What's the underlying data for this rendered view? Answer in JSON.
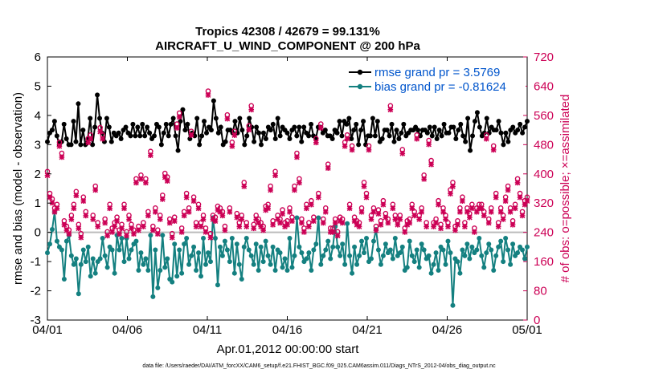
{
  "chart_data": {
    "type": "line",
    "title_line1": "Tropics 42308 / 42679 = 99.131%",
    "title_line2": "AIRCRAFT_U_WIND_COMPONENT @ 200 hPa",
    "xlabel": "Apr.01,2012 00:00:00 start",
    "ylabel_left": "rmse and bias (model - observation)",
    "ylabel_right": "# of obs: o=possible; ×=assimilated",
    "xlim": [
      0,
      30
    ],
    "ylim_left": [
      -3,
      6
    ],
    "ylim_right": [
      0,
      720
    ],
    "x_ticks": [
      0,
      5,
      10,
      15,
      20,
      25,
      30
    ],
    "x_tick_labels": [
      "04/01",
      "04/06",
      "04/11",
      "04/16",
      "04/21",
      "04/26",
      "05/01"
    ],
    "y_left_ticks": [
      -3,
      -2,
      -1,
      0,
      1,
      2,
      3,
      4,
      5,
      6
    ],
    "y_left_tick_labels": [
      "-3",
      "-2",
      "-1",
      "0",
      "1",
      "2",
      "3",
      "4",
      "5",
      "6"
    ],
    "y_right_ticks": [
      0,
      80,
      160,
      240,
      320,
      400,
      480,
      560,
      640,
      720
    ],
    "y_right_tick_labels": [
      "0",
      "80",
      "160",
      "240",
      "320",
      "400",
      "480",
      "560",
      "640",
      "720"
    ],
    "series": [
      {
        "name": "rmse grand pr = 3.5769",
        "color": "#000000",
        "axis": "left",
        "values": [
          3.1,
          3.4,
          3.5,
          3.8,
          3.3,
          3.0,
          3.1,
          3.7,
          3.2,
          3.0,
          3.0,
          3.8,
          3.1,
          4.4,
          3.0,
          3.5,
          3.0,
          3.2,
          3.9,
          3.0,
          3.6,
          4.7,
          3.9,
          3.4,
          3.1,
          3.9,
          3.6,
          3.1,
          3.4,
          3.3,
          3.4,
          3.2,
          3.5,
          3.6,
          3.4,
          3.3,
          3.7,
          3.3,
          3.6,
          3.3,
          3.7,
          3.3,
          3.6,
          3.4,
          3.2,
          3.3,
          3.7,
          3.6,
          3.0,
          3.4,
          3.7,
          3.3,
          3.7,
          3.9,
          3.3,
          2.8,
          3.8,
          4.2,
          3.5,
          3.7,
          3.2,
          3.4,
          3.3,
          3.9,
          3.0,
          3.3,
          3.8,
          3.4,
          3.6,
          3.5,
          4.5,
          3.9,
          3.4,
          3.6,
          3.0,
          3.1,
          3.5,
          3.5,
          3.4,
          3.8,
          3.4,
          3.9,
          3.5,
          3.0,
          3.3,
          3.9,
          3.6,
          3.1,
          3.6,
          3.4,
          3.0,
          3.4,
          3.2,
          3.6,
          3.5,
          3.7,
          3.2,
          3.9,
          3.3,
          3.6,
          3.5,
          3.4,
          3.2,
          3.5,
          3.6,
          3.3,
          3.6,
          3.1,
          3.6,
          3.4,
          3.3,
          3.7,
          3.3,
          3.2,
          3.6,
          3.6,
          3.4,
          3.5,
          3.3,
          3.3,
          3.2,
          3.5,
          3.4,
          3.8,
          3.3,
          3.8,
          3.7,
          3.9,
          3.2,
          3.5,
          3.7,
          3.0,
          3.5,
          3.8,
          3.0,
          3.3,
          3.3,
          3.9,
          3.3,
          3.8,
          3.1,
          3.2,
          3.5,
          3.5,
          3.3,
          3.7,
          3.1,
          3.5,
          3.2,
          3.4,
          3.7,
          3.3,
          3.4,
          3.5,
          3.5,
          3.6,
          3.5,
          3.3,
          3.5,
          3.5,
          3.4,
          3.6,
          3.3,
          3.6,
          3.2,
          3.5,
          3.3,
          3.7,
          3.4,
          3.4,
          3.6,
          3.6,
          3.2,
          3.5,
          3.7,
          3.3,
          3.1,
          3.9,
          2.8,
          3.3,
          3.8,
          4.1,
          3.6,
          3.3,
          3.4,
          3.9,
          3.4,
          3.6,
          3.5,
          3.5,
          3.8,
          3.4,
          3.0,
          3.4,
          3.1,
          3.5,
          3.6,
          3.4,
          3.5,
          3.7,
          3.4,
          3.6,
          3.8
        ]
      },
      {
        "name": "bias grand pr = -0.81624",
        "color": "#148080",
        "axis": "left",
        "values": [
          -0.7,
          -0.4,
          0.1,
          0.7,
          -0.3,
          -0.5,
          -0.6,
          -1.6,
          -0.3,
          -0.1,
          -0.8,
          -1.1,
          -0.9,
          -2.1,
          -1.1,
          -0.6,
          -1.0,
          -0.5,
          -1.5,
          -0.9,
          -1.4,
          -1.0,
          -0.9,
          -0.2,
          -0.8,
          -1.2,
          -0.5,
          -0.6,
          -1.4,
          -0.1,
          -0.6,
          -0.2,
          -1.0,
          -0.2,
          -0.9,
          -0.6,
          -0.4,
          -0.3,
          -1.3,
          -0.7,
          -1.1,
          -0.9,
          -1.3,
          -0.1,
          -2.2,
          -0.6,
          -1.9,
          -1.3,
          -0.1,
          -1.2,
          -0.9,
          -1.6,
          -1.7,
          -0.4,
          -1.5,
          -0.6,
          -1.4,
          -0.4,
          -0.2,
          -1.1,
          -0.8,
          -0.5,
          -1.3,
          -0.7,
          -1.5,
          -0.2,
          -1.1,
          -0.7,
          -1.0,
          0.5,
          -0.2,
          -1.8,
          -0.5,
          -0.8,
          -0.3,
          -0.6,
          -1.0,
          -0.2,
          -1.4,
          -0.4,
          -1.1,
          -1.6,
          -0.5,
          -0.2,
          -0.6,
          -0.8,
          -1.1,
          -0.4,
          -1.3,
          -0.5,
          -1.0,
          -0.3,
          -0.8,
          -1.1,
          -0.5,
          -1.3,
          -0.6,
          -0.7,
          -1.2,
          -0.9,
          -1.3,
          -0.2,
          -1.2,
          -0.8,
          0.5,
          -0.5,
          -0.7,
          -1.0,
          -0.9,
          -0.7,
          -1.3,
          -0.6,
          -0.4,
          0.5,
          -1.1,
          -0.8,
          -0.6,
          -0.3,
          -0.9,
          -0.5,
          0.2,
          -0.5,
          -0.8,
          -0.4,
          -1.1,
          0.3,
          -0.8,
          -1.4,
          -0.5,
          -1.1,
          -0.8,
          -0.3,
          -0.7,
          -0.2,
          -1.0,
          -0.9,
          -0.3,
          0.1,
          -0.6,
          -1.1,
          -0.8,
          -0.4,
          -0.7,
          -0.6,
          -0.9,
          -0.2,
          -0.8,
          -0.7,
          -0.5,
          -1.3,
          -1.2,
          -0.3,
          -0.8,
          -1.0,
          -0.6,
          -1.2,
          -0.4,
          -0.6,
          -0.9,
          -0.8,
          -1.4,
          -1.1,
          -0.7,
          -1.3,
          -0.5,
          -0.6,
          -1.1,
          -0.3,
          -0.7,
          -2.5,
          -0.9,
          -1.0,
          -1.4,
          -0.6,
          -0.8,
          -0.4,
          -0.9,
          -0.5,
          -0.7,
          -0.6,
          -0.2,
          -0.8,
          -1.2,
          -0.7,
          -0.4,
          -0.6,
          -1.3,
          -0.8,
          -0.5,
          -0.3,
          -1.0,
          -0.2,
          -0.6,
          -1.1,
          -0.4,
          -0.8,
          -0.7,
          -0.5,
          -0.6,
          -0.9,
          -0.5
        ]
      },
      {
        "name": "possible obs count",
        "color": "#cc0055",
        "axis": "right",
        "marker": "o",
        "values": [
          400,
          340,
          325,
          300,
          310,
          480,
          450,
          265,
          250,
          240,
          280,
          310,
          345,
          255,
          230,
          330,
          290,
          490,
          500,
          280,
          360,
          260,
          520,
          500,
          270,
          235,
          310,
          245,
          260,
          275,
          240,
          255,
          310,
          235,
          280,
          255,
          240,
          380,
          250,
          390,
          260,
          380,
          290,
          455,
          250,
          300,
          240,
          280,
          335,
          395,
          385,
          270,
          230,
          275,
          530,
          560,
          245,
          290,
          340,
          300,
          510,
          330,
          260,
          310,
          260,
          280,
          245,
          620,
          230,
          280,
          275,
          305,
          300,
          290,
          250,
          555,
          300,
          480,
          510,
          285,
          260,
          280,
          370,
          260,
          525,
          580,
          255,
          280,
          270,
          260,
          250,
          305,
          310,
          360,
          265,
          400,
          280,
          270,
          295,
          260,
          265,
          300,
          275,
          360,
          450,
          380,
          270,
          245,
          310,
          260,
          320,
          275,
          490,
          340,
          530,
          270,
          300,
          420,
          245,
          245,
          270,
          235,
          275,
          270,
          480,
          500,
          310,
          470,
          275,
          265,
          260,
          300,
          370,
          340,
          470,
          280,
          300,
          250,
          295,
          265,
          320,
          285,
          270,
          580,
          310,
          280,
          265,
          280,
          460,
          245,
          265,
          270,
          310,
          290,
          500,
          280,
          300,
          390,
          260,
          485,
          430,
          260,
          270,
          320,
          255,
          300,
          280,
          260,
          350,
          370,
          250,
          265,
          300,
          330,
          260,
          300,
          285,
          310,
          245,
          300,
          310,
          310,
          290,
          500,
          270,
          300,
          470,
          340,
          260,
          300,
          280,
          330,
          360,
          300,
          265,
          310,
          380,
          340,
          290,
          320,
          330
        ]
      },
      {
        "name": "assimilated obs count",
        "color": "#cc0055",
        "axis": "right",
        "marker": "x",
        "values": [
          400,
          340,
          325,
          300,
          310,
          480,
          450,
          265,
          250,
          240,
          280,
          310,
          345,
          255,
          230,
          330,
          290,
          490,
          500,
          280,
          360,
          260,
          520,
          500,
          270,
          235,
          310,
          245,
          260,
          275,
          240,
          255,
          310,
          235,
          280,
          255,
          240,
          380,
          250,
          390,
          260,
          380,
          290,
          455,
          250,
          300,
          240,
          280,
          335,
          395,
          385,
          270,
          230,
          275,
          530,
          560,
          245,
          290,
          340,
          300,
          510,
          330,
          260,
          310,
          260,
          280,
          245,
          620,
          230,
          280,
          275,
          305,
          300,
          290,
          250,
          555,
          300,
          480,
          510,
          285,
          260,
          280,
          370,
          260,
          525,
          580,
          255,
          280,
          270,
          260,
          250,
          305,
          310,
          360,
          265,
          400,
          280,
          270,
          295,
          260,
          265,
          300,
          275,
          360,
          450,
          380,
          270,
          245,
          310,
          260,
          320,
          275,
          490,
          340,
          530,
          270,
          300,
          420,
          245,
          245,
          270,
          235,
          275,
          270,
          480,
          500,
          310,
          470,
          275,
          265,
          260,
          300,
          370,
          340,
          470,
          280,
          300,
          250,
          295,
          265,
          320,
          285,
          270,
          580,
          310,
          280,
          265,
          280,
          460,
          245,
          265,
          270,
          310,
          290,
          500,
          280,
          300,
          390,
          260,
          485,
          430,
          260,
          270,
          320,
          255,
          300,
          280,
          260,
          350,
          370,
          250,
          265,
          300,
          330,
          260,
          300,
          285,
          310,
          245,
          300,
          310,
          310,
          290,
          500,
          270,
          300,
          470,
          340,
          260,
          300,
          280,
          330,
          360,
          300,
          265,
          310,
          380,
          340,
          290,
          320,
          330
        ]
      }
    ],
    "legend": [
      "rmse grand pr = 3.5769",
      "bias grand pr = -0.81624"
    ],
    "legend_position": "top-right",
    "footer": "data file: /Users/raeder/DAI/ATM_forcXX/CAM6_setup/f.e21.FHIST_BGC.f09_025.CAM6assim.011/Diags_NTrS_2012-04/obs_diag_output.nc"
  }
}
